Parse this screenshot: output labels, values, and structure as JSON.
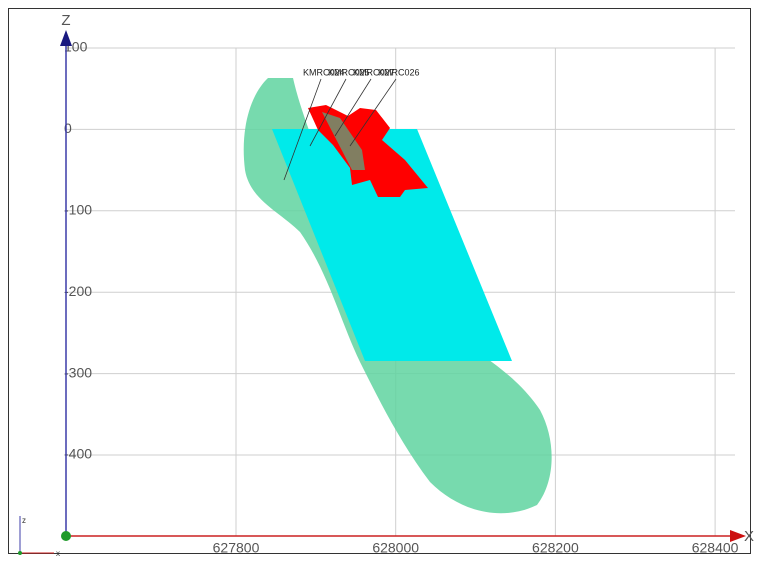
{
  "axes": {
    "x": {
      "label": "X",
      "ticks": [
        "627800",
        "628000",
        "628200",
        "628400"
      ]
    },
    "z": {
      "label": "Z",
      "ticks": [
        "100",
        "0",
        "-100",
        "-200",
        "-300",
        "-400"
      ]
    }
  },
  "drillholes": [
    "KMRC024",
    "KMRC025",
    "KMRC027",
    "KMRC026"
  ],
  "orientation": {
    "up": "z",
    "right": "x"
  }
}
